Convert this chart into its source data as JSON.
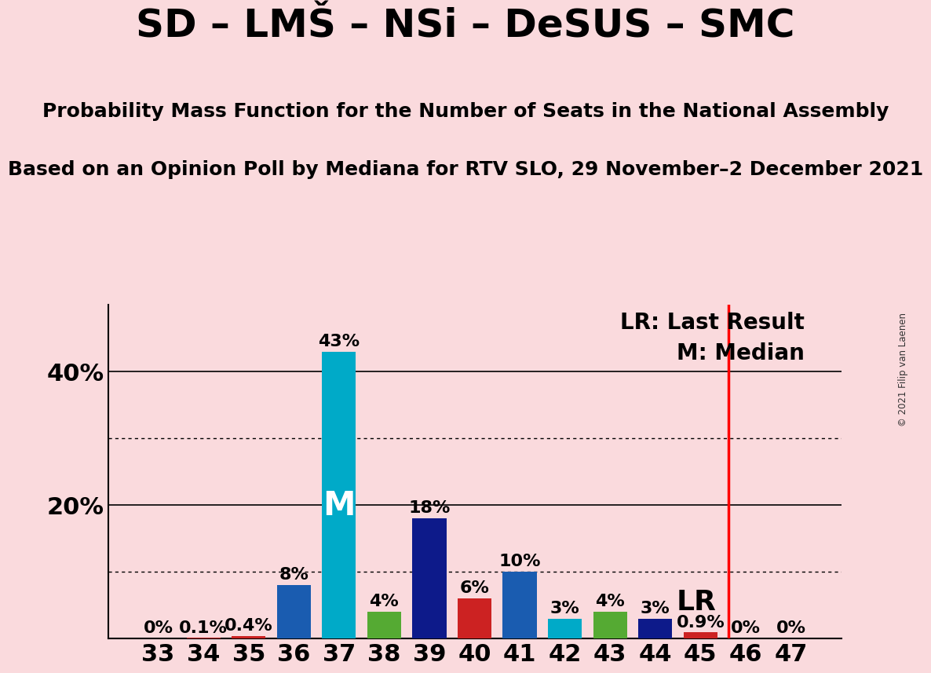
{
  "title": "SD – LMŠ – NSi – DeSUS – SMC",
  "subtitle1": "Probability Mass Function for the Number of Seats in the National Assembly",
  "subtitle2": "Based on an Opinion Poll by Mediana for RTV SLO, 29 November–2 December 2021",
  "copyright": "© 2021 Filip van Laenen",
  "categories": [
    33,
    34,
    35,
    36,
    37,
    38,
    39,
    40,
    41,
    42,
    43,
    44,
    45,
    46,
    47
  ],
  "values": [
    0.0,
    0.1,
    0.4,
    8.0,
    43.0,
    4.0,
    18.0,
    6.0,
    10.0,
    3.0,
    4.0,
    3.0,
    0.9,
    0.0,
    0.0
  ],
  "labels": [
    "0%",
    "0.1%",
    "0.4%",
    "8%",
    "43%",
    "4%",
    "18%",
    "6%",
    "10%",
    "3%",
    "4%",
    "3%",
    "0.9%",
    "0%",
    "0%"
  ],
  "colors": [
    "#1a4a9a",
    "#cc2222",
    "#cc2222",
    "#1a5cb0",
    "#00aac8",
    "#55aa33",
    "#0d1a8a",
    "#cc2222",
    "#1a5cb0",
    "#00aac8",
    "#55aa33",
    "#0d1a8a",
    "#cc2222",
    "#1a4a9a",
    "#1a4a9a"
  ],
  "median_bar_seat": 37,
  "lr_seat": 45,
  "median_label": "M",
  "lr_label": "LR",
  "legend_lr": "LR: Last Result",
  "legend_m": "M: Median",
  "background_color": "#fadadd",
  "ylim_max": 50,
  "title_fontsize": 36,
  "subtitle_fontsize": 18,
  "label_fontsize": 16,
  "tick_fontsize": 22,
  "median_label_fontsize": 30,
  "lr_label_fontsize": 26,
  "legend_fontsize": 20
}
